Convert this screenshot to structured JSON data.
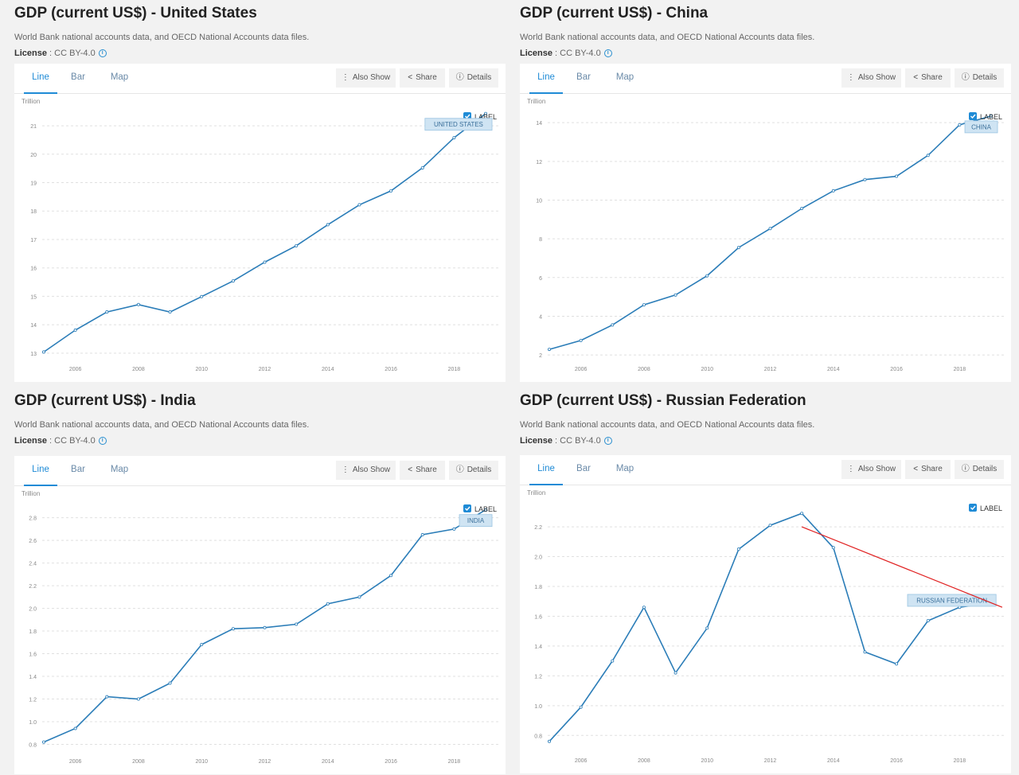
{
  "common": {
    "source": "World Bank national accounts data, and OECD National Accounts data files.",
    "license_label": "License",
    "license_value": ": CC BY-4.0",
    "info_glyph": "i",
    "tabs": [
      "Line",
      "Bar",
      "Map"
    ],
    "buttons": {
      "also_show": "Also Show",
      "share": "Share",
      "details": "Details"
    },
    "label_toggle": "LABEL",
    "unit": "Trillion",
    "line_color": "#2b7db8",
    "accent_color": "#1f8bd6",
    "annotation_color": "#e02020"
  },
  "panels": [
    {
      "title": "GDP (current US$) - United States",
      "series_label": "UNITED STATES"
    },
    {
      "title": "GDP (current US$) - China",
      "series_label": "CHINA"
    },
    {
      "title": "GDP (current US$) - India",
      "series_label": "INDIA"
    },
    {
      "title": "GDP (current US$) - Russian Federation",
      "series_label": "RUSSIAN FEDERATION"
    }
  ],
  "chart_data": [
    {
      "type": "line",
      "title": "GDP (current US$) - United States",
      "ylabel": "Trillion",
      "x": [
        2005,
        2006,
        2007,
        2008,
        2009,
        2010,
        2011,
        2012,
        2013,
        2014,
        2015,
        2016,
        2017,
        2018,
        2019
      ],
      "series": [
        {
          "name": "UNITED STATES",
          "values": [
            13.04,
            13.81,
            14.45,
            14.71,
            14.45,
            14.99,
            15.54,
            16.2,
            16.78,
            17.52,
            18.22,
            18.71,
            19.52,
            20.58,
            21.43
          ]
        }
      ],
      "yticks": [
        13,
        14,
        15,
        16,
        17,
        18,
        19,
        20,
        21
      ],
      "xticks": [
        2006,
        2008,
        2010,
        2012,
        2014,
        2016,
        2018
      ],
      "ylim": [
        12.8,
        21.45
      ],
      "xlim": [
        2005,
        2019.1
      ],
      "grid": true,
      "legend": "top-right"
    },
    {
      "type": "line",
      "title": "GDP (current US$) - China",
      "ylabel": "Trillion",
      "x": [
        2005,
        2006,
        2007,
        2008,
        2009,
        2010,
        2011,
        2012,
        2013,
        2014,
        2015,
        2016,
        2017,
        2018,
        2019
      ],
      "series": [
        {
          "name": "CHINA",
          "values": [
            2.29,
            2.75,
            3.55,
            4.59,
            5.1,
            6.09,
            7.55,
            8.53,
            9.57,
            10.48,
            11.06,
            11.23,
            12.31,
            13.89,
            14.34
          ]
        }
      ],
      "yticks": [
        2,
        4,
        6,
        8,
        10,
        12,
        14
      ],
      "xticks": [
        2006,
        2008,
        2010,
        2012,
        2014,
        2016,
        2018
      ],
      "ylim": [
        1.8,
        14.5
      ],
      "xlim": [
        2005,
        2019.1
      ],
      "grid": true,
      "legend": "top-right"
    },
    {
      "type": "line",
      "title": "GDP (current US$) - India",
      "ylabel": "Trillion",
      "x": [
        2005,
        2006,
        2007,
        2008,
        2009,
        2010,
        2011,
        2012,
        2013,
        2014,
        2015,
        2016,
        2017,
        2018,
        2019
      ],
      "series": [
        {
          "name": "INDIA",
          "values": [
            0.82,
            0.94,
            1.22,
            1.2,
            1.34,
            1.68,
            1.82,
            1.83,
            1.86,
            2.04,
            2.1,
            2.29,
            2.65,
            2.7,
            2.87
          ]
        }
      ],
      "yticks": [
        0.8,
        1.0,
        1.2,
        1.4,
        1.6,
        1.8,
        2.0,
        2.2,
        2.4,
        2.6,
        2.8
      ],
      "xticks": [
        2006,
        2008,
        2010,
        2012,
        2014,
        2016,
        2018
      ],
      "ylim": [
        0.74,
        2.91
      ],
      "xlim": [
        2005,
        2019.1
      ],
      "grid": true,
      "legend": "top-right"
    },
    {
      "type": "line",
      "title": "GDP (current US$) - Russian Federation",
      "ylabel": "Trillion",
      "x": [
        2005,
        2006,
        2007,
        2008,
        2009,
        2010,
        2011,
        2012,
        2013,
        2014,
        2015,
        2016,
        2017,
        2018,
        2019
      ],
      "series": [
        {
          "name": "RUSSIAN FEDERATION",
          "values": [
            0.76,
            0.99,
            1.3,
            1.66,
            1.22,
            1.52,
            2.05,
            2.21,
            2.29,
            2.06,
            1.36,
            1.28,
            1.57,
            1.66,
            1.69
          ]
        }
      ],
      "yticks": [
        0.8,
        1.0,
        1.2,
        1.4,
        1.6,
        1.8,
        2.0,
        2.2
      ],
      "xticks": [
        2006,
        2008,
        2010,
        2012,
        2014,
        2016,
        2018
      ],
      "ylim": [
        0.7,
        2.35
      ],
      "xlim": [
        2005,
        2019.1
      ],
      "grid": true,
      "legend": "top-right",
      "annotation": {
        "type": "line",
        "from": [
          2013,
          2.2
        ],
        "to": [
          2019.35,
          1.66
        ]
      }
    }
  ]
}
